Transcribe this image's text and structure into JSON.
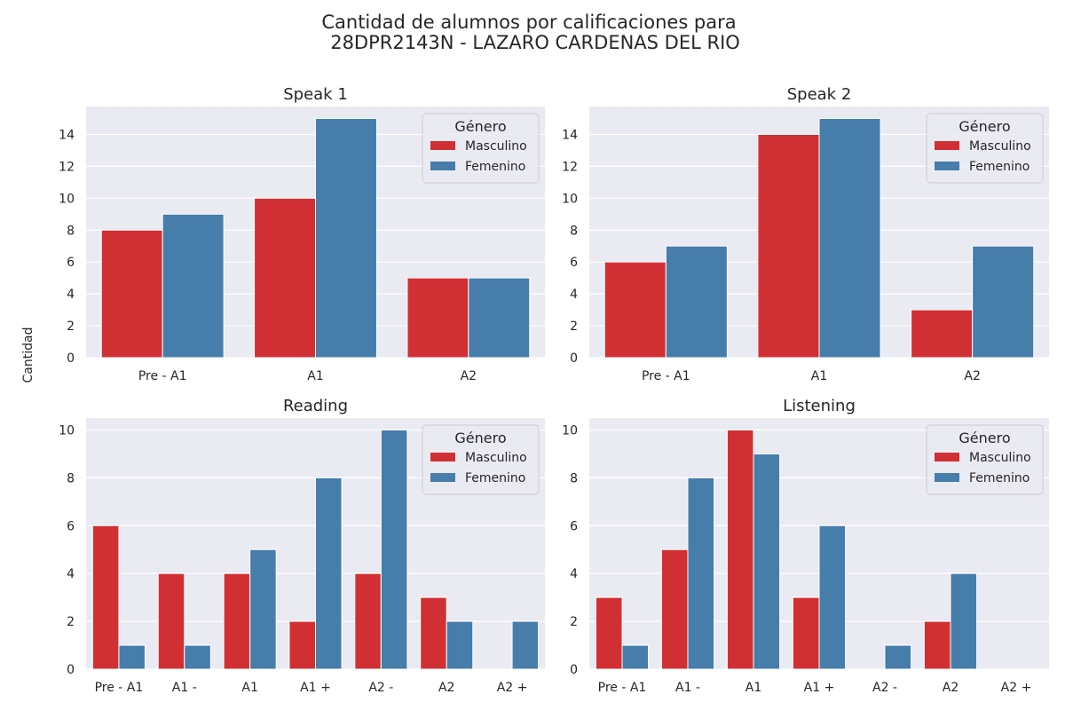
{
  "figure": {
    "title_line1": "Cantidad de alumnos por calificaciones para",
    "title_line2": "28DPR2143N - LAZARO CARDENAS DEL RIO",
    "ylabel": "Cantidad",
    "background": "#eaeaf2",
    "grid_color": "#ffffff"
  },
  "chart_data": [
    {
      "type": "bar",
      "title": "Speak 1",
      "categories": [
        "Pre - A1",
        "A1",
        "A2"
      ],
      "series": [
        {
          "name": "Masculino",
          "color": "#d03033",
          "values": [
            8,
            10,
            5
          ]
        },
        {
          "name": "Femenino",
          "color": "#467daa",
          "values": [
            9,
            15,
            5
          ]
        }
      ],
      "ylim": [
        0,
        15.75
      ],
      "yticks": [
        0,
        2,
        4,
        6,
        8,
        10,
        12,
        14
      ],
      "grid": true,
      "legend": {
        "title": "Género",
        "position": "top-right"
      }
    },
    {
      "type": "bar",
      "title": "Speak 2",
      "categories": [
        "Pre - A1",
        "A1",
        "A2"
      ],
      "series": [
        {
          "name": "Masculino",
          "color": "#d03033",
          "values": [
            6,
            14,
            3
          ]
        },
        {
          "name": "Femenino",
          "color": "#467daa",
          "values": [
            7,
            15,
            7
          ]
        }
      ],
      "ylim": [
        0,
        15.75
      ],
      "yticks": [
        0,
        2,
        4,
        6,
        8,
        10,
        12,
        14
      ],
      "grid": true,
      "legend": {
        "title": "Género",
        "position": "top-right"
      }
    },
    {
      "type": "bar",
      "title": "Reading",
      "categories": [
        "Pre - A1",
        "A1 -",
        "A1",
        "A1 +",
        "A2 -",
        "A2",
        "A2 +"
      ],
      "series": [
        {
          "name": "Masculino",
          "color": "#d03033",
          "values": [
            6,
            4,
            4,
            2,
            4,
            3,
            0
          ]
        },
        {
          "name": "Femenino",
          "color": "#467daa",
          "values": [
            1,
            1,
            5,
            8,
            10,
            2,
            2
          ]
        }
      ],
      "ylim": [
        0,
        10.5
      ],
      "yticks": [
        0,
        2,
        4,
        6,
        8,
        10
      ],
      "grid": true,
      "legend": {
        "title": "Género",
        "position": "top-right"
      }
    },
    {
      "type": "bar",
      "title": "Listening",
      "categories": [
        "Pre - A1",
        "A1 -",
        "A1",
        "A1 +",
        "A2 -",
        "A2",
        "A2 +"
      ],
      "series": [
        {
          "name": "Masculino",
          "color": "#d03033",
          "values": [
            3,
            5,
            10,
            3,
            0,
            2,
            0
          ]
        },
        {
          "name": "Femenino",
          "color": "#467daa",
          "values": [
            1,
            8,
            9,
            6,
            1,
            4,
            0
          ]
        }
      ],
      "ylim": [
        0,
        10.5
      ],
      "yticks": [
        0,
        2,
        4,
        6,
        8,
        10
      ],
      "grid": true,
      "legend": {
        "title": "Género",
        "position": "top-right"
      }
    }
  ]
}
